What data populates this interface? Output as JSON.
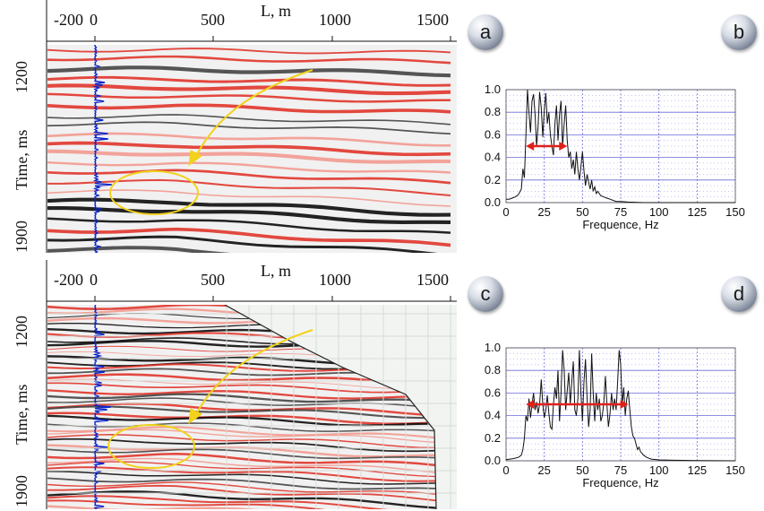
{
  "sections": [
    {
      "id": "top",
      "seismic_panel_label": "a",
      "spectrum_panel_label": "b",
      "x_axis_title": "L, m",
      "x_ticks": [
        "-200",
        "0",
        "500",
        "1000",
        "1500"
      ],
      "y_axis_title": "Time, ms",
      "y_ticks": [
        "1200",
        "1900"
      ]
    },
    {
      "id": "bottom",
      "seismic_panel_label": "c",
      "spectrum_panel_label": "d",
      "x_axis_title": "L, m",
      "x_ticks": [
        "-200",
        "0",
        "500",
        "1000",
        "1500"
      ],
      "y_axis_title": "Time, ms",
      "y_ticks": [
        "1200",
        "1900"
      ]
    }
  ],
  "colors": {
    "annotation": "#f2d21a",
    "bandwidth_arrow": "#e0201a",
    "trace": "#0a24c8",
    "grid": "#6a6ad8"
  },
  "chart_data": [
    {
      "type": "line",
      "panel": "b",
      "xlabel": "Frequence, Hz",
      "ylabel": "",
      "xlim": [
        0,
        150
      ],
      "ylim": [
        0,
        1.0
      ],
      "x_ticks": [
        0,
        25,
        50,
        75,
        100,
        125,
        150
      ],
      "y_ticks": [
        0.0,
        0.2,
        0.4,
        0.6,
        0.8,
        1.0
      ],
      "grid": true,
      "bandwidth_arrow": {
        "from": 13,
        "to": 40,
        "level": 0.5
      },
      "x": [
        0,
        2,
        4,
        6,
        8,
        10,
        11,
        12,
        13,
        14,
        15,
        16,
        17,
        18,
        19,
        20,
        21,
        22,
        23,
        24,
        25,
        26,
        27,
        28,
        29,
        30,
        31,
        32,
        33,
        34,
        35,
        36,
        37,
        38,
        39,
        40,
        41,
        42,
        43,
        44,
        45,
        46,
        47,
        48,
        49,
        50,
        51,
        52,
        53,
        54,
        55,
        56,
        57,
        58,
        59,
        60,
        62,
        64,
        66,
        68,
        70,
        72,
        75,
        80,
        90,
        100,
        120,
        150
      ],
      "values": [
        0.03,
        0.03,
        0.04,
        0.05,
        0.07,
        0.12,
        0.3,
        0.22,
        0.6,
        1.0,
        0.8,
        0.62,
        0.9,
        0.96,
        0.78,
        0.5,
        0.68,
        0.98,
        0.84,
        0.58,
        0.82,
        0.97,
        0.7,
        0.8,
        0.6,
        0.5,
        0.42,
        0.7,
        0.86,
        0.55,
        0.78,
        0.9,
        0.5,
        0.7,
        0.86,
        0.55,
        0.4,
        0.45,
        0.3,
        0.38,
        0.25,
        0.45,
        0.3,
        0.2,
        0.32,
        0.45,
        0.28,
        0.15,
        0.25,
        0.18,
        0.12,
        0.2,
        0.1,
        0.14,
        0.08,
        0.1,
        0.06,
        0.05,
        0.04,
        0.03,
        0.02,
        0.01,
        0.01,
        0.005,
        0.0,
        0.0,
        0.0,
        0.0
      ]
    },
    {
      "type": "line",
      "panel": "d",
      "xlabel": "Frequence, Hz",
      "ylabel": "",
      "xlim": [
        0,
        150
      ],
      "ylim": [
        0,
        1.0
      ],
      "x_ticks": [
        0,
        25,
        50,
        75,
        100,
        125,
        150
      ],
      "y_ticks": [
        0.0,
        0.2,
        0.4,
        0.6,
        0.8,
        1.0
      ],
      "grid": true,
      "bandwidth_arrow": {
        "from": 13,
        "to": 80,
        "level": 0.5
      },
      "x": [
        0,
        5,
        8,
        10,
        11,
        12,
        13,
        14,
        15,
        16,
        17,
        18,
        19,
        20,
        21,
        22,
        23,
        24,
        25,
        26,
        27,
        28,
        29,
        30,
        31,
        32,
        33,
        34,
        35,
        36,
        37,
        38,
        39,
        40,
        41,
        42,
        43,
        44,
        45,
        46,
        47,
        48,
        49,
        50,
        51,
        52,
        53,
        54,
        55,
        56,
        57,
        58,
        59,
        60,
        61,
        62,
        63,
        64,
        65,
        66,
        67,
        68,
        69,
        70,
        71,
        72,
        73,
        74,
        75,
        76,
        77,
        78,
        79,
        80,
        81,
        82,
        83,
        84,
        85,
        86,
        87,
        88,
        90,
        92,
        95,
        100,
        110,
        125,
        150
      ],
      "values": [
        0.01,
        0.02,
        0.03,
        0.05,
        0.1,
        0.2,
        0.4,
        0.35,
        0.55,
        0.38,
        0.5,
        0.6,
        0.45,
        0.52,
        0.42,
        0.5,
        0.72,
        0.5,
        0.38,
        0.45,
        0.58,
        0.42,
        0.3,
        0.28,
        0.5,
        0.65,
        0.55,
        0.8,
        0.35,
        0.6,
        0.98,
        0.8,
        0.45,
        0.62,
        0.78,
        0.5,
        0.7,
        0.88,
        0.45,
        0.4,
        0.55,
        0.98,
        0.6,
        0.35,
        0.7,
        0.9,
        0.55,
        0.3,
        0.45,
        0.95,
        0.6,
        0.35,
        0.6,
        0.45,
        0.55,
        0.35,
        0.4,
        0.52,
        0.75,
        0.5,
        0.3,
        0.42,
        0.6,
        0.45,
        0.55,
        0.45,
        0.7,
        0.98,
        0.85,
        0.5,
        0.65,
        0.4,
        0.55,
        0.62,
        0.45,
        0.3,
        0.22,
        0.2,
        0.15,
        0.1,
        0.12,
        0.08,
        0.05,
        0.03,
        0.015,
        0.008,
        0.005,
        0.002,
        0.0
      ]
    }
  ]
}
